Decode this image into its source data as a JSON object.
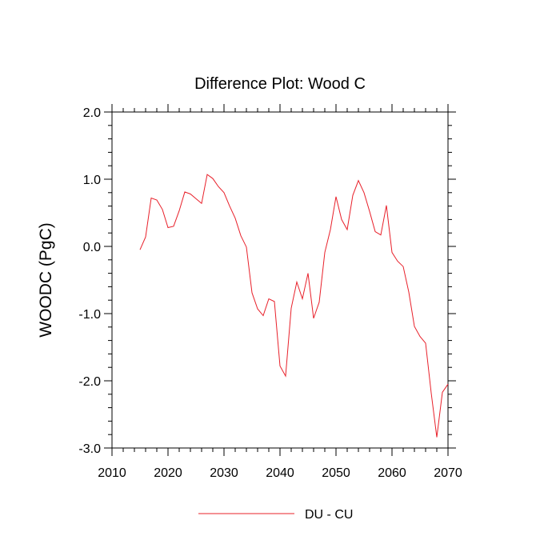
{
  "chart_data": {
    "type": "line",
    "title": "Difference Plot: Wood C",
    "xlabel": "",
    "ylabel": "WOODC  (PgC)",
    "xlim": [
      2010,
      2070
    ],
    "ylim": [
      -3.0,
      2.0
    ],
    "xticks": [
      2010,
      2020,
      2030,
      2040,
      2050,
      2060,
      2070
    ],
    "yticks": [
      2.0,
      1.0,
      0.0,
      -1.0,
      -2.0,
      -3.0
    ],
    "ytick_labels": [
      "2.0",
      "1.0",
      "0.0",
      "-1.0",
      "-2.0",
      "-3.0"
    ],
    "grid": false,
    "legend_position": "bottom-center",
    "series": [
      {
        "name": "DU - CU",
        "color": "#e8202a",
        "x": [
          2015,
          2016,
          2017,
          2018,
          2019,
          2020,
          2021,
          2022,
          2023,
          2024,
          2025,
          2026,
          2027,
          2028,
          2029,
          2030,
          2031,
          2032,
          2033,
          2034,
          2035,
          2036,
          2037,
          2038,
          2039,
          2040,
          2041,
          2042,
          2043,
          2044,
          2045,
          2046,
          2047,
          2048,
          2049,
          2050,
          2051,
          2052,
          2053,
          2054,
          2055,
          2056,
          2057,
          2058,
          2059,
          2060,
          2061,
          2062,
          2063,
          2064,
          2065,
          2066,
          2067,
          2068,
          2069,
          2070
        ],
        "y": [
          -0.05,
          0.14,
          0.72,
          0.69,
          0.55,
          0.28,
          0.3,
          0.53,
          0.81,
          0.78,
          0.71,
          0.64,
          1.07,
          1.01,
          0.89,
          0.8,
          0.6,
          0.42,
          0.16,
          -0.01,
          -0.69,
          -0.93,
          -1.03,
          -0.78,
          -0.82,
          -1.78,
          -1.93,
          -0.92,
          -0.53,
          -0.78,
          -0.4,
          -1.07,
          -0.83,
          -0.09,
          0.25,
          0.74,
          0.4,
          0.25,
          0.76,
          0.98,
          0.8,
          0.52,
          0.22,
          0.17,
          0.61,
          -0.09,
          -0.22,
          -0.3,
          -0.68,
          -1.19,
          -1.34,
          -1.44,
          -2.18,
          -2.84,
          -2.17,
          -2.05
        ]
      }
    ]
  }
}
